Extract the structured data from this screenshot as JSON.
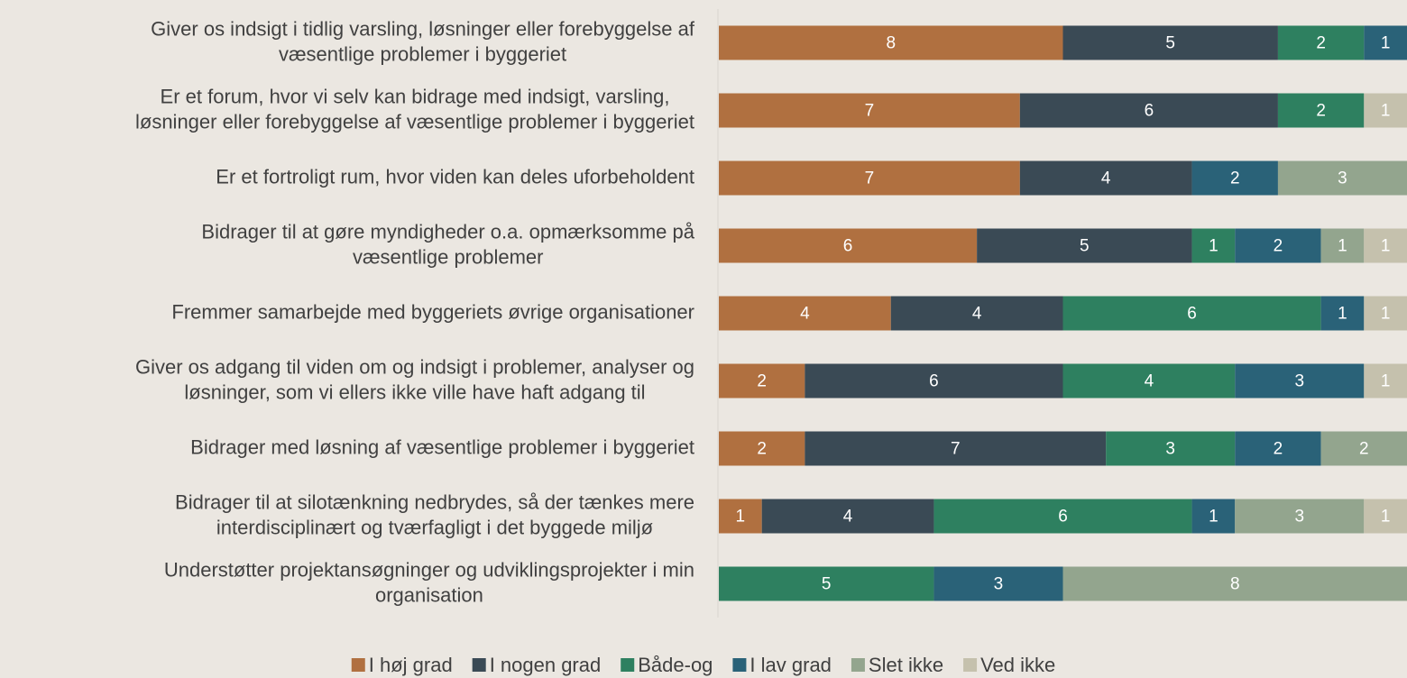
{
  "chart_data": {
    "type": "stacked-barh",
    "categories": [
      "Giver os indsigt i tidlig varsling, løsninger eller forebyggelse af\nvæsentlige problemer i byggeriet",
      "Er et forum, hvor vi selv kan bidrage med indsigt, varsling,\nløsninger eller forebyggelse af væsentlige problemer i byggeriet",
      "Er et fortroligt rum, hvor viden kan deles uforbeholdent",
      "Bidrager til at gøre myndigheder o.a. opmærksomme på\nvæsentlige problemer",
      "Fremmer samarbejde med byggeriets øvrige organisationer",
      "Giver os adgang til viden om og indsigt i problemer, analyser og\nløsninger, som vi ellers ikke ville have haft adgang til",
      "Bidrager med løsning af væsentlige problemer i byggeriet",
      "Bidrager til at silotænkning nedbrydes, så der tænkes mere\ninterdisciplinært og tværfagligt i det byggede miljø",
      "Understøtter projektansøgninger og udviklingsprojekter i min\norganisation"
    ],
    "series": [
      {
        "name": "I høj grad",
        "color": "#b07040",
        "values": [
          8,
          7,
          7,
          6,
          4,
          2,
          2,
          1,
          null
        ]
      },
      {
        "name": "I nogen grad",
        "color": "#3a4a55",
        "values": [
          5,
          6,
          4,
          5,
          4,
          6,
          7,
          4,
          null
        ]
      },
      {
        "name": "Både-og",
        "color": "#2e8060",
        "values": [
          2,
          2,
          null,
          1,
          6,
          4,
          3,
          6,
          5
        ]
      },
      {
        "name": "I lav grad",
        "color": "#2a6278",
        "values": [
          1,
          null,
          2,
          2,
          1,
          3,
          2,
          1,
          3
        ]
      },
      {
        "name": "Slet ikke",
        "color": "#93a58e",
        "values": [
          null,
          null,
          3,
          1,
          null,
          null,
          2,
          3,
          8
        ]
      },
      {
        "name": "Ved ikke",
        "color": "#c5c1ad",
        "values": [
          null,
          1,
          null,
          1,
          1,
          1,
          null,
          1,
          null
        ]
      }
    ],
    "xlim": [
      0,
      16
    ],
    "legend": "bottom"
  }
}
